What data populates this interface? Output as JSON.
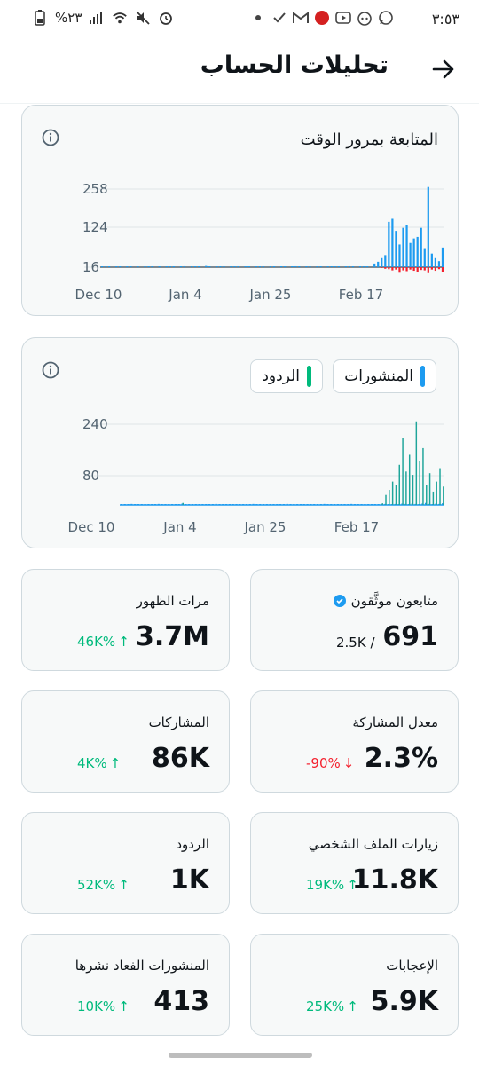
{
  "status_bar": {
    "time": "٣:٥٣",
    "battery": "%٢٣",
    "icons": [
      "battery-icon",
      "signal-icon",
      "wifi-icon",
      "mute-icon",
      "alarm-icon",
      "dot-icon",
      "check-icon",
      "gmail-icon",
      "app-icon",
      "youtube-icon",
      "reddit-icon",
      "whatsapp-icon"
    ]
  },
  "header": {
    "title": "تحليلات الحساب",
    "back_icon": "arrow-right-icon"
  },
  "colors": {
    "blue": "#1d9bf0",
    "red": "#f4212e",
    "green": "#00ba7c",
    "teal": "#1ea59a"
  },
  "followers_card": {
    "title": "المتابعة بمرور الوقت",
    "info_icon": "info-icon",
    "chart_data": {
      "type": "bar",
      "yticks": [
        "258",
        "124",
        "16"
      ],
      "ylim": [
        0,
        270
      ],
      "xticks": [
        "Dec 10",
        "Jan 4",
        "Jan 25",
        "Feb 17"
      ],
      "series": [
        {
          "values": [
            2,
            1,
            1,
            0,
            2,
            1,
            0,
            1,
            1,
            0,
            1,
            0,
            1,
            2,
            1,
            0,
            1,
            0,
            2,
            1,
            1,
            0,
            1,
            3,
            0,
            1,
            2,
            1,
            0,
            4,
            1,
            0,
            1,
            2,
            1,
            0,
            1,
            1,
            3,
            0,
            2,
            1,
            0,
            1,
            2,
            1,
            0,
            1,
            1,
            0,
            2,
            1,
            0,
            1,
            3,
            1,
            0,
            2,
            1,
            0,
            1,
            2,
            0,
            1,
            1,
            2,
            1,
            0,
            1,
            3,
            1,
            0,
            2,
            1,
            1,
            0,
            12,
            18,
            30,
            40,
            150,
            160,
            120,
            75,
            130,
            140,
            80,
            95,
            100,
            130,
            60,
            265,
            45,
            30,
            20,
            65
          ]
        },
        {
          "values": [
            0,
            0,
            0,
            0,
            0,
            0,
            0,
            0,
            0,
            0,
            0,
            0,
            0,
            0,
            0,
            0,
            0,
            0,
            0,
            0,
            0,
            0,
            0,
            0,
            0,
            0,
            0,
            0,
            0,
            0,
            0,
            0,
            0,
            0,
            0,
            0,
            0,
            0,
            0,
            0,
            0,
            0,
            0,
            0,
            0,
            0,
            0,
            0,
            0,
            0,
            0,
            0,
            0,
            0,
            0,
            0,
            0,
            0,
            0,
            0,
            0,
            0,
            0,
            0,
            0,
            0,
            0,
            0,
            0,
            0,
            0,
            0,
            0,
            0,
            0,
            0,
            0,
            0,
            2,
            4,
            5,
            8,
            6,
            14,
            8,
            10,
            6,
            9,
            12,
            7,
            8,
            15,
            6,
            9,
            5,
            12
          ]
        }
      ]
    }
  },
  "activity_card": {
    "info_icon": "info-icon",
    "legend": [
      {
        "label": "المنشورات",
        "color": "#1d9bf0"
      },
      {
        "label": "الردود",
        "color": "#00ba7c"
      }
    ],
    "chart_data": {
      "type": "bar",
      "yticks": [
        "240",
        "80"
      ],
      "ylim": [
        0,
        260
      ],
      "xticks": [
        "Dec 10",
        "Jan 4",
        "Jan 25",
        "Feb 17"
      ],
      "series": [
        {
          "values": [
            2,
            1,
            1,
            3,
            1,
            2,
            1,
            1,
            2,
            1,
            1,
            3,
            1,
            2,
            1,
            1,
            2,
            1,
            4,
            1,
            2,
            1,
            1,
            2,
            1,
            1,
            2,
            1,
            3,
            1,
            1,
            2,
            1,
            1,
            2,
            1,
            1,
            2,
            1,
            3,
            1,
            2,
            1,
            1,
            2,
            1,
            1,
            2,
            1,
            3,
            1,
            1,
            2,
            1,
            1,
            2,
            1,
            2,
            1,
            1,
            3,
            1,
            2,
            1,
            1,
            2,
            1,
            1,
            3,
            1,
            2,
            1,
            1,
            2,
            1,
            1,
            2,
            1,
            3,
            2,
            2,
            3,
            2,
            4,
            3,
            2,
            5,
            3,
            2,
            4,
            6,
            3,
            2,
            4,
            3,
            5
          ]
        },
        {
          "values": [
            0,
            0,
            0,
            0,
            0,
            0,
            0,
            0,
            0,
            0,
            0,
            0,
            0,
            0,
            0,
            0,
            0,
            0,
            6,
            0,
            0,
            0,
            0,
            0,
            0,
            0,
            0,
            0,
            0,
            0,
            0,
            0,
            0,
            0,
            0,
            0,
            0,
            0,
            0,
            0,
            0,
            0,
            0,
            0,
            0,
            0,
            0,
            0,
            0,
            0,
            0,
            0,
            0,
            0,
            0,
            0,
            0,
            0,
            0,
            0,
            0,
            0,
            0,
            0,
            0,
            0,
            0,
            0,
            0,
            0,
            0,
            0,
            0,
            0,
            0,
            0,
            0,
            5,
            30,
            45,
            70,
            60,
            120,
            200,
            100,
            150,
            90,
            250,
            130,
            170,
            60,
            95,
            40,
            70,
            110,
            55
          ]
        }
      ]
    }
  },
  "metrics": [
    {
      "label": "متابعون موثَّقون",
      "value": "691",
      "secondary": "2.5K /",
      "change": "",
      "dir": "",
      "verified": true
    },
    {
      "label": "مرات الظهور",
      "value": "3.7M",
      "secondary": "",
      "change": "46K%",
      "dir": "up",
      "verified": false
    },
    {
      "label": "معدل المشاركة",
      "value": "2.3%",
      "secondary": "",
      "change": "-90%",
      "dir": "down",
      "verified": false
    },
    {
      "label": "المشاركات",
      "value": "86K",
      "secondary": "",
      "change": "4K%",
      "dir": "up",
      "verified": false
    },
    {
      "label": "زيارات الملف الشخصي",
      "value": "11.8K",
      "secondary": "",
      "change": "19K%",
      "dir": "up",
      "verified": false
    },
    {
      "label": "الردود",
      "value": "1K",
      "secondary": "",
      "change": "52K%",
      "dir": "up",
      "verified": false
    },
    {
      "label": "الإعجابات",
      "value": "5.9K",
      "secondary": "",
      "change": "25K%",
      "dir": "up",
      "verified": false
    },
    {
      "label": "المنشورات الفعاد نشرها",
      "value": "413",
      "secondary": "",
      "change": "10K%",
      "dir": "up",
      "verified": false
    }
  ]
}
